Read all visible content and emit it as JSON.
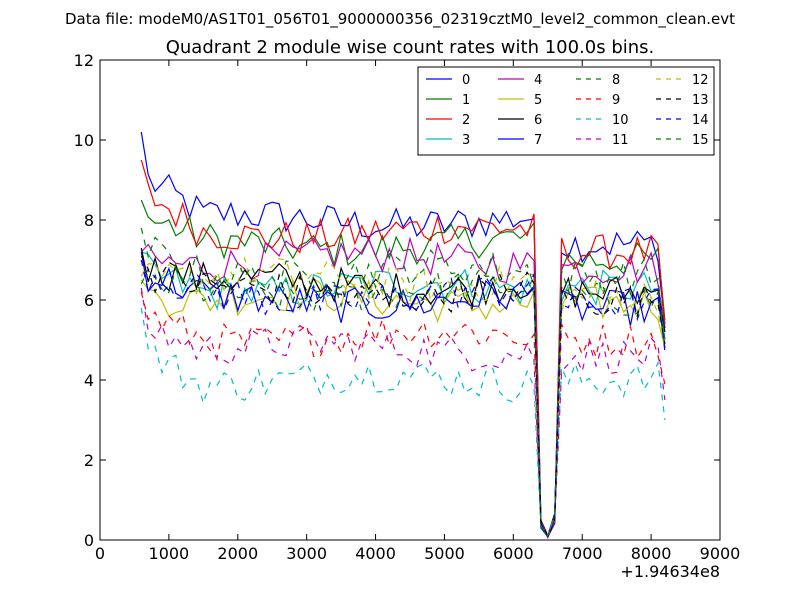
{
  "suptitle": "Data file: modeM0/AS1T01_056T01_9000000356_02319cztM0_level2_common_clean.evt",
  "title": "Quadrant 2 module wise count rates with 100.0s bins.",
  "chart_data": {
    "type": "line",
    "xlim": [
      0,
      9000
    ],
    "ylim": [
      0,
      12
    ],
    "x_offset_label": "+1.94634e8",
    "x_ticks": [
      0,
      1000,
      2000,
      3000,
      4000,
      5000,
      6000,
      7000,
      8000,
      9000
    ],
    "y_ticks": [
      0,
      2,
      4,
      6,
      8,
      10,
      12
    ],
    "grid": false,
    "legend_placement": "top-right",
    "x_start": 600,
    "x_step": 100,
    "gap_x": [
      6400,
      6500,
      6600
    ],
    "colors": [
      "#0000ff",
      "#008000",
      "#ff0000",
      "#00bfbf",
      "#bf00bf",
      "#bfbf00",
      "#000000",
      "#0000ff",
      "#008000",
      "#ff0000",
      "#00bfbf",
      "#bf00bf",
      "#bfbf00",
      "#000000",
      "#0000ff",
      "#008000"
    ],
    "series": [
      {
        "name": "0",
        "start": 10.2,
        "level": 8.0,
        "tail_level": 7.4,
        "end": 5.4,
        "dash": false
      },
      {
        "name": "1",
        "start": 8.5,
        "level": 7.4,
        "tail_level": 7.0,
        "end": 5.5,
        "dash": false
      },
      {
        "name": "2",
        "start": 9.5,
        "level": 7.7,
        "tail_level": 7.2,
        "end": 5.3,
        "dash": false
      },
      {
        "name": "3",
        "start": 7.2,
        "level": 6.3,
        "tail_level": 6.3,
        "end": 5.0,
        "dash": false
      },
      {
        "name": "4",
        "start": 7.2,
        "level": 7.0,
        "tail_level": 6.8,
        "end": 5.3,
        "dash": false
      },
      {
        "name": "5",
        "start": 6.5,
        "level": 6.0,
        "tail_level": 5.9,
        "end": 4.8,
        "dash": false
      },
      {
        "name": "6",
        "start": 7.3,
        "level": 6.4,
        "tail_level": 6.2,
        "end": 5.2,
        "dash": false
      },
      {
        "name": "7",
        "start": 7.2,
        "level": 6.0,
        "tail_level": 5.8,
        "end": 4.8,
        "dash": false
      },
      {
        "name": "8",
        "start": 6.4,
        "level": 6.2,
        "tail_level": 6.0,
        "end": 4.8,
        "dash": true
      },
      {
        "name": "9",
        "start": 6.2,
        "level": 5.1,
        "tail_level": 5.0,
        "end": 3.9,
        "dash": true
      },
      {
        "name": "10",
        "start": 5.8,
        "level": 4.0,
        "tail_level": 4.0,
        "end": 3.0,
        "dash": true
      },
      {
        "name": "11",
        "start": 6.3,
        "level": 4.8,
        "tail_level": 4.6,
        "end": 3.5,
        "dash": true
      },
      {
        "name": "12",
        "start": 6.6,
        "level": 6.5,
        "tail_level": 6.1,
        "end": 4.9,
        "dash": true
      },
      {
        "name": "13",
        "start": 7.1,
        "level": 6.2,
        "tail_level": 6.0,
        "end": 4.9,
        "dash": true
      },
      {
        "name": "14",
        "start": 7.0,
        "level": 6.1,
        "tail_level": 5.9,
        "end": 4.7,
        "dash": true
      },
      {
        "name": "15",
        "start": 7.8,
        "level": 6.7,
        "tail_level": 6.6,
        "end": 5.0,
        "dash": true
      }
    ]
  }
}
